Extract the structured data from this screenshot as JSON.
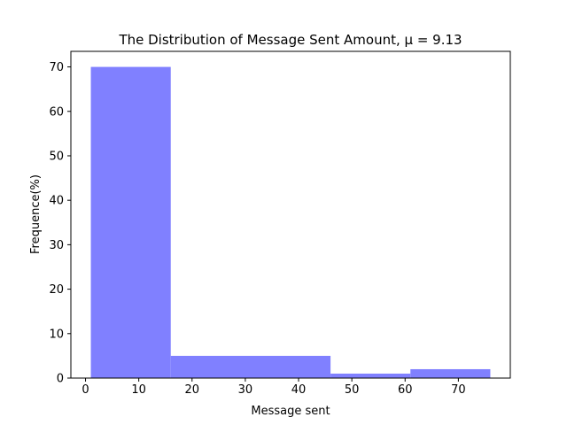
{
  "chart_data": {
    "type": "bar",
    "title": "The Distribution of Message Sent Amount, μ = 9.13",
    "xlabel": "Message sent",
    "ylabel": "Frequence(%)",
    "xlim": [
      -2.75,
      79.75
    ],
    "ylim": [
      0,
      73.5
    ],
    "xticks": [
      0,
      10,
      20,
      30,
      40,
      50,
      60,
      70
    ],
    "yticks": [
      0,
      10,
      20,
      30,
      40,
      50,
      60,
      70
    ],
    "bins": [
      {
        "x_start": 1,
        "x_end": 16,
        "value": 70
      },
      {
        "x_start": 16,
        "x_end": 46,
        "value": 5
      },
      {
        "x_start": 46,
        "x_end": 61,
        "value": 1
      },
      {
        "x_start": 61,
        "x_end": 76,
        "value": 2
      }
    ],
    "bar_color": "#8080ff",
    "grid": false,
    "legend": "none"
  }
}
